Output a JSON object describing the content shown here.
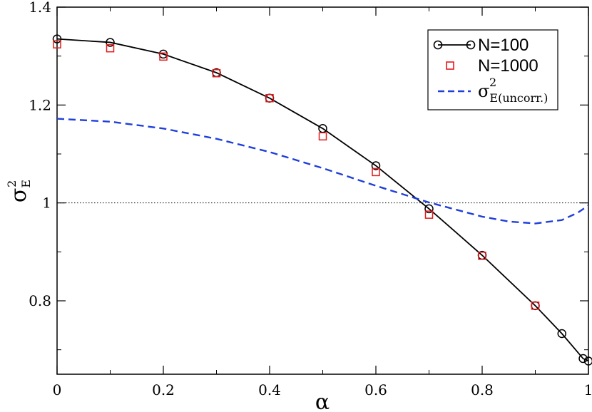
{
  "chart_data": {
    "type": "line",
    "xlabel": "α",
    "ylabel": {
      "main": "σ",
      "sub": "E",
      "sup": "2"
    },
    "xlim": [
      0,
      1
    ],
    "ylim": [
      0.65,
      1.4
    ],
    "x_ticks": [
      0,
      0.2,
      0.4,
      0.6,
      0.8,
      1
    ],
    "x_tick_labels": [
      "0",
      "0.2",
      "0.4",
      "0.6",
      "0.8",
      "1"
    ],
    "y_ticks": [
      0.8,
      1.0,
      1.2,
      1.4
    ],
    "y_tick_labels": [
      "0.8",
      "1",
      "1.2",
      "1.4"
    ],
    "reference_line": {
      "y": 1.0,
      "style": "dotted",
      "color": "#000000"
    },
    "legend_position": "top-right",
    "series": [
      {
        "name": "N=100",
        "style": "line-circle",
        "color": "#000000",
        "x": [
          0,
          0.1,
          0.2,
          0.3,
          0.4,
          0.5,
          0.6,
          0.7,
          0.8,
          0.9,
          0.95,
          0.99,
          1.0
        ],
        "y": [
          1.335,
          1.328,
          1.304,
          1.266,
          1.214,
          1.152,
          1.076,
          0.988,
          0.893,
          0.79,
          0.733,
          0.682,
          0.677
        ]
      },
      {
        "name": "N=1000",
        "style": "square",
        "color": "#e31a1c",
        "x": [
          0,
          0.1,
          0.2,
          0.3,
          0.4,
          0.5,
          0.6,
          0.7,
          0.8,
          0.9
        ],
        "y": [
          1.324,
          1.316,
          1.299,
          1.265,
          1.214,
          1.136,
          1.063,
          0.976,
          0.892,
          0.79
        ]
      },
      {
        "name": {
          "main": "σ",
          "sub": "E(uncorr.)",
          "sup": "2"
        },
        "style": "dashed",
        "color": "#1f3fd9",
        "x": [
          0,
          0.1,
          0.2,
          0.3,
          0.4,
          0.5,
          0.6,
          0.7,
          0.8,
          0.85,
          0.9,
          0.95,
          0.98,
          1.0
        ],
        "y": [
          1.172,
          1.166,
          1.152,
          1.131,
          1.104,
          1.071,
          1.035,
          1.001,
          0.972,
          0.962,
          0.958,
          0.965,
          0.98,
          0.995
        ]
      }
    ]
  }
}
